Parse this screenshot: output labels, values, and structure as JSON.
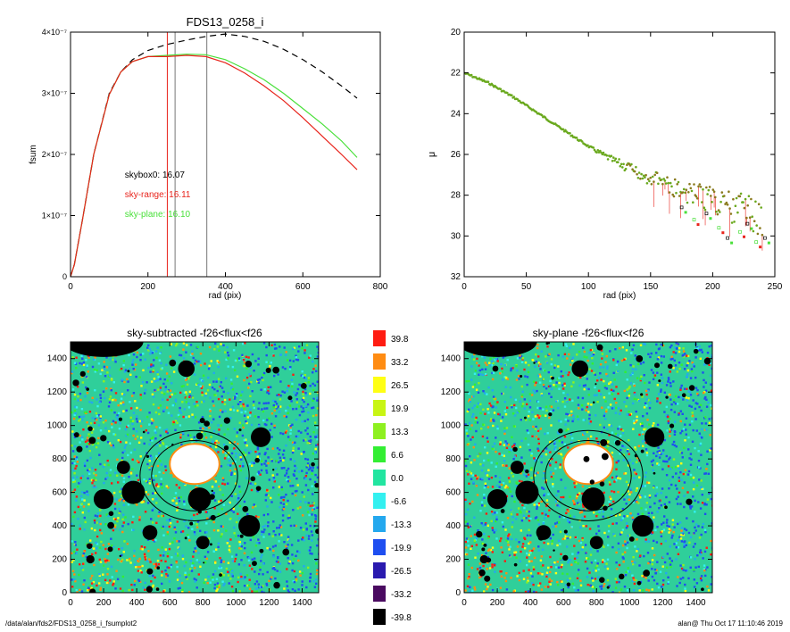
{
  "colors": {
    "black": "#000000",
    "red": "#e8231b",
    "green": "#49e03a",
    "olive": "#8a7a1e",
    "grey": "#777777",
    "blue": "#1f52d8",
    "cyan": "#39d2d6",
    "skyfg": "#5fd0a0"
  },
  "footer": {
    "left": "/data/alan/fds2/FDS13_0258_i_fsumplot2",
    "right": "alan@  Thu Oct 17 11:10:46 2019"
  },
  "chart_data": [
    {
      "type": "line",
      "title": "FDS13_0258_i",
      "xlabel": "rad (pix)",
      "ylabel": "fsum",
      "xlim": [
        0,
        800
      ],
      "ylim": [
        0,
        4e-07
      ],
      "xticks": [
        0,
        200,
        400,
        600,
        800
      ],
      "xtick_labels": [
        "0",
        "200",
        "400",
        "600",
        "800"
      ],
      "yticks": [
        0,
        1e-07,
        2e-07,
        3e-07,
        4e-07
      ],
      "ytick_labels": [
        "0",
        "1×10⁻⁷",
        "2×10⁻⁷",
        "3×10⁻⁷",
        "4×10⁻⁷"
      ],
      "series": [
        {
          "style": "dashed",
          "color": "black",
          "x": [
            0,
            10,
            30,
            60,
            100,
            130,
            160,
            200,
            250,
            300,
            350,
            400,
            450,
            500,
            550,
            600,
            650,
            700,
            740
          ],
          "y": [
            0,
            2e-08,
            9e-08,
            2e-07,
            3e-07,
            3.35e-07,
            3.55e-07,
            3.7e-07,
            3.8e-07,
            3.87e-07,
            3.93e-07,
            3.97e-07,
            3.93e-07,
            3.85e-07,
            3.72e-07,
            3.55e-07,
            3.35e-07,
            3.12e-07,
            2.92e-07
          ]
        },
        {
          "style": "solid",
          "color": "green",
          "x": [
            0,
            10,
            30,
            60,
            100,
            130,
            160,
            200,
            250,
            300,
            350,
            400,
            450,
            500,
            550,
            600,
            650,
            700,
            740
          ],
          "y": [
            0,
            2e-08,
            9e-08,
            2e-07,
            2.98e-07,
            3.35e-07,
            3.52e-07,
            3.6e-07,
            3.62e-07,
            3.64e-07,
            3.63e-07,
            3.55e-07,
            3.4e-07,
            3.22e-07,
            3e-07,
            2.75e-07,
            2.5e-07,
            2.22e-07,
            1.95e-07
          ]
        },
        {
          "style": "solid",
          "color": "red",
          "x": [
            0,
            10,
            30,
            60,
            100,
            130,
            160,
            200,
            250,
            300,
            350,
            400,
            450,
            500,
            550,
            600,
            650,
            700,
            740
          ],
          "y": [
            0,
            2e-08,
            9e-08,
            2e-07,
            2.98e-07,
            3.35e-07,
            3.52e-07,
            3.6e-07,
            3.6e-07,
            3.62e-07,
            3.6e-07,
            3.5e-07,
            3.33e-07,
            3.12e-07,
            2.88e-07,
            2.6e-07,
            2.3e-07,
            2e-07,
            1.75e-07
          ]
        }
      ],
      "vlines": [
        {
          "x": 250,
          "color": "red"
        },
        {
          "x": 270,
          "color": "grey"
        },
        {
          "x": 352,
          "color": "grey"
        }
      ],
      "annotations": [
        {
          "text": "skybox0: 16.07",
          "color": "black",
          "x": 140,
          "y": 1.62e-07
        },
        {
          "text": "sky-range: 16.11",
          "color": "red",
          "x": 140,
          "y": 1.3e-07
        },
        {
          "text": "sky-plane: 16.10",
          "color": "green",
          "x": 140,
          "y": 9.8e-08
        }
      ]
    },
    {
      "type": "scatter",
      "xlabel": "rad (pix)",
      "ylabel": "μ",
      "xlim": [
        0,
        250
      ],
      "ylim": [
        32,
        20
      ],
      "xticks": [
        0,
        50,
        100,
        150,
        200,
        250
      ],
      "xtick_labels": [
        "0",
        "50",
        "100",
        "150",
        "200",
        "250"
      ],
      "yticks": [
        20,
        22,
        24,
        26,
        28,
        30,
        32
      ],
      "ytick_labels": [
        "20",
        "22",
        "24",
        "26",
        "28",
        "30",
        "32"
      ],
      "profile": {
        "x": [
          0,
          20,
          40,
          60,
          80,
          100,
          120,
          140,
          160,
          180,
          200,
          220,
          240
        ],
        "y": [
          22.0,
          22.5,
          23.2,
          24.0,
          24.8,
          25.6,
          26.3,
          26.9,
          27.4,
          27.9,
          28.3,
          28.7,
          29.1
        ]
      },
      "scatter_outliers": [
        {
          "x": 175,
          "y": 28.6
        },
        {
          "x": 185,
          "y": 29.2
        },
        {
          "x": 195,
          "y": 28.9
        },
        {
          "x": 205,
          "y": 29.6
        },
        {
          "x": 212,
          "y": 30.1
        },
        {
          "x": 222,
          "y": 29.8
        },
        {
          "x": 228,
          "y": 29.4
        },
        {
          "x": 235,
          "y": 30.3
        },
        {
          "x": 242,
          "y": 30.1
        }
      ]
    },
    {
      "type": "heatmap",
      "title": "sky-subtracted -f26<flux<f26",
      "xlim": [
        0,
        1500
      ],
      "ylim": [
        0,
        1500
      ],
      "xticks": [
        0,
        200,
        400,
        600,
        800,
        1000,
        1200,
        1400
      ],
      "xtick_labels": [
        "0",
        "200",
        "400",
        "600",
        "800",
        "1000",
        "1200",
        "1400"
      ],
      "yticks": [
        0,
        200,
        400,
        600,
        800,
        1000,
        1200,
        1400
      ],
      "ytick_labels": [
        "0",
        "200",
        "400",
        "600",
        "800",
        "1000",
        "1200",
        "1400"
      ],
      "ellipses": [
        {
          "cx": 750,
          "cy": 700,
          "rx": 330,
          "ry": 270
        },
        {
          "cx": 750,
          "cy": 700,
          "rx": 260,
          "ry": 210
        }
      ],
      "masks": [
        {
          "x": 1150,
          "y": 930,
          "r": 60
        },
        {
          "x": 380,
          "y": 600,
          "r": 70
        },
        {
          "x": 200,
          "y": 560,
          "r": 60
        },
        {
          "x": 480,
          "y": 360,
          "r": 45
        },
        {
          "x": 780,
          "y": 560,
          "r": 70
        },
        {
          "x": 1080,
          "y": 400,
          "r": 65
        },
        {
          "x": 700,
          "y": 1340,
          "r": 50
        },
        {
          "x": 320,
          "y": 750,
          "r": 40
        },
        {
          "x": 800,
          "y": 300,
          "r": 40
        },
        {
          "x": 120,
          "y": 200,
          "r": 25
        }
      ]
    },
    {
      "type": "heatmap",
      "title": "sky-plane -f26<flux<f26",
      "xlim": [
        0,
        1500
      ],
      "ylim": [
        0,
        1500
      ],
      "xticks": [
        0,
        200,
        400,
        600,
        800,
        1000,
        1200,
        1400
      ],
      "xtick_labels": [
        "0",
        "200",
        "400",
        "600",
        "800",
        "1000",
        "1200",
        "1400"
      ],
      "yticks": [
        0,
        200,
        400,
        600,
        800,
        1000,
        1200,
        1400
      ],
      "ytick_labels": [
        "0",
        "200",
        "400",
        "600",
        "800",
        "1000",
        "1200",
        "1400"
      ],
      "ellipses": [
        {
          "cx": 750,
          "cy": 700,
          "rx": 330,
          "ry": 270
        },
        {
          "cx": 750,
          "cy": 700,
          "rx": 260,
          "ry": 210
        }
      ],
      "masks": [
        {
          "x": 1150,
          "y": 930,
          "r": 60
        },
        {
          "x": 380,
          "y": 600,
          "r": 70
        },
        {
          "x": 200,
          "y": 560,
          "r": 60
        },
        {
          "x": 480,
          "y": 360,
          "r": 45
        },
        {
          "x": 780,
          "y": 560,
          "r": 70
        },
        {
          "x": 1080,
          "y": 400,
          "r": 65
        },
        {
          "x": 700,
          "y": 1340,
          "r": 50
        },
        {
          "x": 320,
          "y": 750,
          "r": 40
        },
        {
          "x": 800,
          "y": 300,
          "r": 40
        },
        {
          "x": 120,
          "y": 200,
          "r": 25
        }
      ]
    },
    {
      "type": "colorbar",
      "labels": [
        "39.8",
        "33.2",
        "26.5",
        "19.9",
        "13.3",
        "6.6",
        "0.0",
        "-6.6",
        "-13.3",
        "-19.9",
        "-26.5",
        "-33.2",
        "-39.8"
      ],
      "colors": [
        "#ff1c12",
        "#ff8c12",
        "#ffff14",
        "#c8f514",
        "#8ef020",
        "#33ee33",
        "#22e5a0",
        "#33f0f0",
        "#24a8ee",
        "#1e4ef0",
        "#2a1aaf",
        "#4a0a60",
        "#000000"
      ]
    }
  ]
}
